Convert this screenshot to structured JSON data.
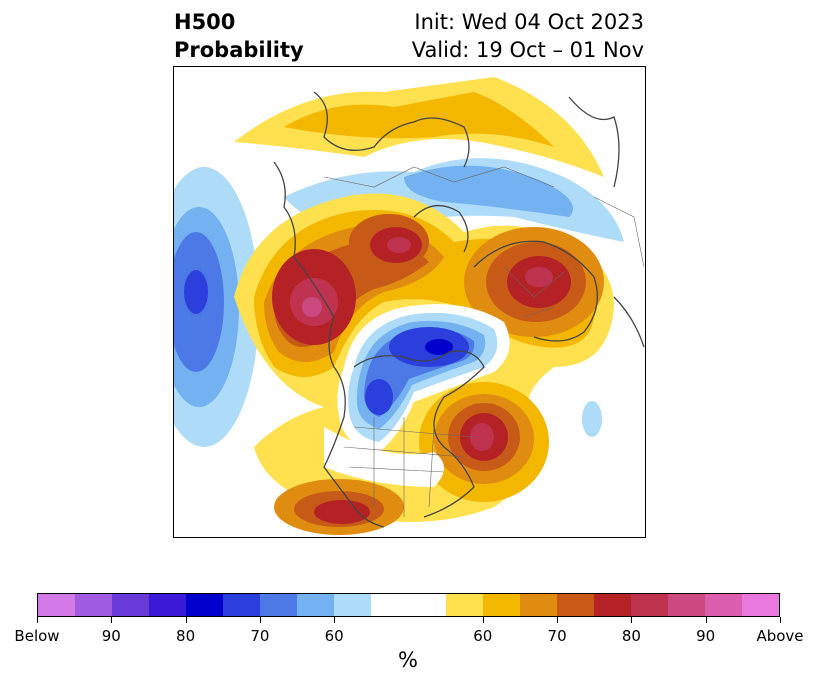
{
  "title": {
    "line1": "H500",
    "line2": "Probability",
    "init": "Init: Wed 04 Oct 2023",
    "valid": "Valid: 19 Oct – 01 Nov"
  },
  "colorbar": {
    "colors": [
      "#d47ae8",
      "#a05be0",
      "#6a3ad9",
      "#3b19d6",
      "#0000cc",
      "#2a3fdc",
      "#4d79e6",
      "#74b1f0",
      "#aedcf8",
      "#ffffff",
      "#ffe04f",
      "#f4b700",
      "#e08c10",
      "#c85a18",
      "#b52226",
      "#c03350",
      "#cc4a82",
      "#db5eaf",
      "#e878de"
    ],
    "tick_labels": [
      "Below",
      "90",
      "80",
      "70",
      "60",
      "60",
      "70",
      "80",
      "90",
      "Above"
    ],
    "unit": "%"
  }
}
